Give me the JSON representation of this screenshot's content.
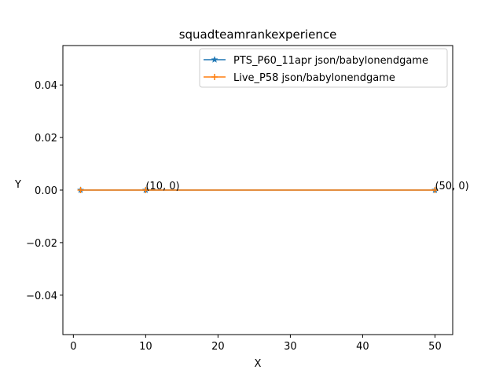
{
  "chart_data": {
    "type": "line",
    "title": "squadteamrankexperience",
    "xlabel": "X",
    "ylabel": "Y",
    "xlim": [
      -1.45,
      52.45
    ],
    "ylim": [
      -0.055,
      0.055
    ],
    "x_ticks": [
      0,
      10,
      20,
      30,
      40,
      50
    ],
    "y_ticks": [
      -0.04,
      -0.02,
      0.0,
      0.02,
      0.04
    ],
    "x_tick_labels": [
      "0",
      "10",
      "20",
      "30",
      "40",
      "50"
    ],
    "y_tick_labels": [
      "−0.04",
      "−0.02",
      "0.00",
      "0.02",
      "0.04"
    ],
    "grid": false,
    "legend_position": "top-right",
    "series": [
      {
        "name": "PTS_P60_11apr json/babylonendgame",
        "color": "#1f77b4",
        "marker": "star",
        "x": [
          1,
          10,
          50
        ],
        "y": [
          0,
          0,
          0
        ]
      },
      {
        "name": "Live_P58 json/babylonendgame",
        "color": "#ff7f0e",
        "marker": "plus",
        "x": [
          1,
          10,
          50
        ],
        "y": [
          0,
          0,
          0
        ]
      }
    ],
    "annotations": [
      {
        "text": "(10, 0)",
        "x": 10,
        "y": 0
      },
      {
        "text": "(50, 0)",
        "x": 50,
        "y": 0
      }
    ]
  }
}
